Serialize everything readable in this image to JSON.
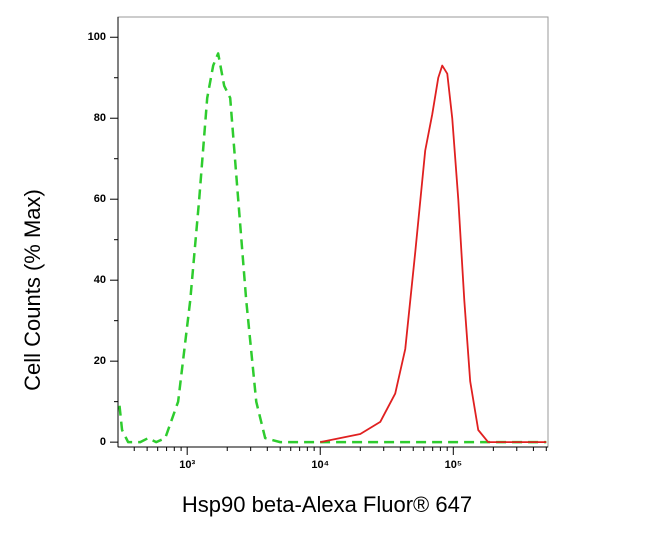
{
  "chart_data": {
    "type": "line",
    "log_x": true,
    "x_label": "Hsp90 beta-Alexa Fluor® 647",
    "y_label": "Cell Counts (% Max)",
    "xlim": [
      302,
      515000
    ],
    "ylim": [
      -1.2,
      105
    ],
    "xticks": [
      {
        "value": 1000,
        "label": "10³"
      },
      {
        "value": 10000,
        "label": "10⁴"
      },
      {
        "value": 100000,
        "label": "10⁵"
      }
    ],
    "yticks": [
      0,
      20,
      40,
      60,
      80,
      100
    ],
    "series": [
      {
        "color": "#2ecc2e",
        "dashed": true,
        "x": [
          310,
          324,
          360,
          444,
          509,
          585,
          684,
          855,
          1054,
          1231,
          1414,
          1568,
          1709,
          1897,
          2105,
          2417,
          2778,
          3304,
          3855,
          5000,
          500000
        ],
        "values": [
          9,
          3,
          0,
          0,
          1,
          0,
          1,
          10,
          35,
          60,
          85,
          93,
          96,
          88,
          85,
          60,
          35,
          10,
          1,
          0,
          0
        ]
      },
      {
        "color": "#e02020",
        "dashed": false,
        "x": [
          10000,
          20000,
          28250,
          36600,
          43550,
          51800,
          61500,
          69500,
          77100,
          82600,
          90100,
          98200,
          109000,
          121000,
          134000,
          154000,
          183000,
          500000
        ],
        "values": [
          0,
          2,
          5,
          12,
          23,
          47,
          72,
          81,
          90,
          93,
          91,
          80,
          60,
          35,
          15,
          3,
          0,
          0
        ]
      }
    ]
  }
}
